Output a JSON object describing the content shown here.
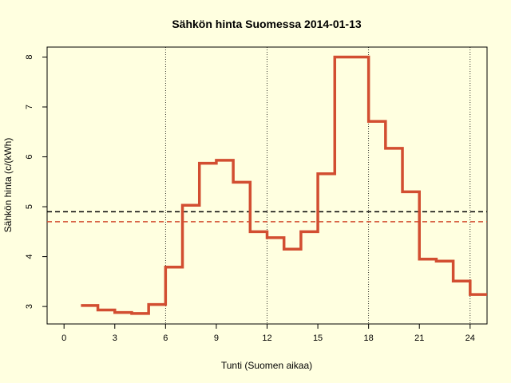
{
  "chart_data": {
    "type": "line",
    "title": "Sähkön hinta Suomessa 2014-01-13",
    "xlabel": "Tunti (Suomen aikaa)",
    "ylabel": "Sähkön hinta (c/(kWh)",
    "xlim": [
      -1,
      25
    ],
    "ylim": [
      2.65,
      8.2
    ],
    "x_ticks": [
      0,
      3,
      6,
      9,
      12,
      15,
      18,
      21,
      24
    ],
    "y_ticks": [
      3,
      4,
      5,
      6,
      7,
      8
    ],
    "vertical_dotted_lines": [
      6,
      12,
      18,
      24
    ],
    "series": [
      {
        "style": "step",
        "color": "#D24E31",
        "x": [
          1,
          2,
          3,
          4,
          5,
          6,
          7,
          8,
          9,
          10,
          11,
          12,
          13,
          14,
          15,
          16,
          17,
          18,
          19,
          20,
          21,
          22,
          23,
          24,
          25
        ],
        "values": [
          3.02,
          2.93,
          2.88,
          2.86,
          3.04,
          3.79,
          5.03,
          5.87,
          5.93,
          5.49,
          4.5,
          4.38,
          4.15,
          4.5,
          5.66,
          8.0,
          8.0,
          6.71,
          6.17,
          5.3,
          3.95,
          3.91,
          3.51,
          3.24,
          3.24
        ]
      }
    ],
    "reference_lines": [
      {
        "y": 4.9,
        "color": "#000000",
        "style": "dashed"
      },
      {
        "y": 4.7,
        "color": "#D24E31",
        "style": "dashed"
      }
    ],
    "grid": false,
    "legend": "none"
  }
}
